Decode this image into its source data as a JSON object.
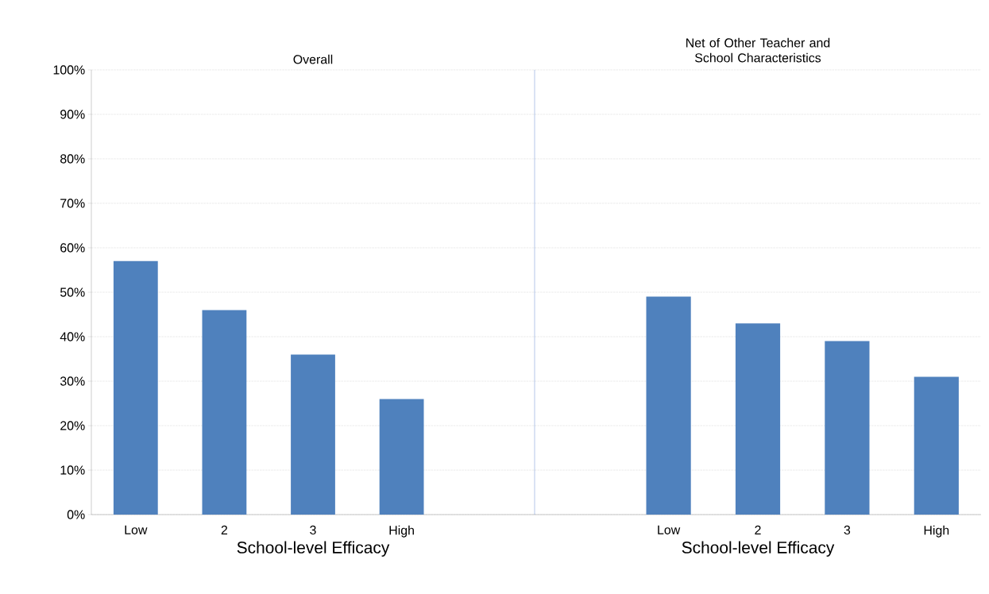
{
  "chart_data": [
    {
      "type": "bar",
      "title": "Overall",
      "xlabel": "School-level Efficacy",
      "categories": [
        "Low",
        "2",
        "3",
        "High"
      ],
      "values": [
        57,
        46,
        36,
        26
      ],
      "color": "#4f81bd",
      "ylim": [
        0,
        100
      ],
      "yticks": [
        {
          "value": 0,
          "label": "0%"
        },
        {
          "value": 10,
          "label": "10%"
        },
        {
          "value": 20,
          "label": "20%"
        },
        {
          "value": 30,
          "label": "30%"
        },
        {
          "value": 40,
          "label": "40%"
        },
        {
          "value": 50,
          "label": "50%"
        },
        {
          "value": 60,
          "label": "60%"
        },
        {
          "value": 70,
          "label": "70%"
        },
        {
          "value": 80,
          "label": "80%"
        },
        {
          "value": 90,
          "label": "90%"
        },
        {
          "value": 100,
          "label": "100%"
        }
      ],
      "grid": "y"
    },
    {
      "type": "bar",
      "title": "Net of Other Teacher and School Characteristics",
      "xlabel": "School-level Efficacy",
      "categories": [
        "Low",
        "2",
        "3",
        "High"
      ],
      "values": [
        49,
        43,
        39,
        31
      ],
      "color": "#4f81bd",
      "ylim": [
        0,
        100
      ],
      "yticks": [
        {
          "value": 0,
          "label": null
        },
        {
          "value": 10,
          "label": null
        },
        {
          "value": 20,
          "label": null
        },
        {
          "value": 30,
          "label": null
        },
        {
          "value": 40,
          "label": null
        },
        {
          "value": 50,
          "label": null
        },
        {
          "value": 60,
          "label": null
        },
        {
          "value": 70,
          "label": null
        },
        {
          "value": 80,
          "label": null
        },
        {
          "value": 90,
          "label": null
        },
        {
          "value": 100,
          "label": null
        }
      ],
      "grid": "y",
      "tick_labels": "x"
    }
  ]
}
